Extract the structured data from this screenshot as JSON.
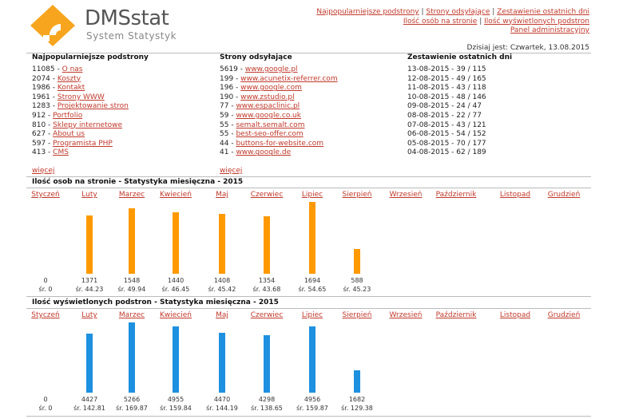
{
  "brand": {
    "name": "DMSstat",
    "subtitle": "System Statystyk"
  },
  "topnav": {
    "items": [
      "Najpopularniejsze podstrony",
      "Strony odsyłające",
      "Zestawienie ostatnich dni",
      "Ilość osób na stronie",
      "Ilość wyświetlonych podstron",
      "Panel administracyjny"
    ]
  },
  "date_text": "Dzisiaj jest: Czwartek, 13.08.2015",
  "popular": {
    "title": "Najpopularniejsze podstrony",
    "rows": [
      {
        "count": "11085",
        "label": "O nas"
      },
      {
        "count": "2074",
        "label": "Koszty"
      },
      {
        "count": "1986",
        "label": "Kontakt"
      },
      {
        "count": "1961",
        "label": "Strony WWW"
      },
      {
        "count": "1283",
        "label": "Projektowanie stron"
      },
      {
        "count": "912",
        "label": "Portfolio"
      },
      {
        "count": "810",
        "label": "Sklepy internetowe"
      },
      {
        "count": "627",
        "label": "About us"
      },
      {
        "count": "597",
        "label": "Programista PHP"
      },
      {
        "count": "413",
        "label": "CMS"
      }
    ],
    "more": "więcej"
  },
  "referrers": {
    "title": "Strony odsyłające",
    "rows": [
      {
        "count": "5619",
        "label": "www.google.pl"
      },
      {
        "count": "199",
        "label": "www.acunetix-referrer.com"
      },
      {
        "count": "196",
        "label": "www.google.com"
      },
      {
        "count": "190",
        "label": "www.zstudio.pl"
      },
      {
        "count": "77",
        "label": "www.espaclinic.pl"
      },
      {
        "count": "59",
        "label": "www.google.co.uk"
      },
      {
        "count": "55",
        "label": "semalt.semalt.com"
      },
      {
        "count": "55",
        "label": "best-seo-offer.com"
      },
      {
        "count": "44",
        "label": "buttons-for-website.com"
      },
      {
        "count": "41",
        "label": "www.google.de"
      }
    ],
    "more": "więcej"
  },
  "recent": {
    "title": "Zestawienie ostatnich dni",
    "rows": [
      "13-08-2015 - 39 / 115",
      "12-08-2015 - 49 / 165",
      "11-08-2015 - 43 / 118",
      "10-08-2015 - 48 / 146",
      "09-08-2015 - 24 / 47",
      "08-08-2015 - 22 / 77",
      "07-08-2015 - 43 / 121",
      "06-08-2015 - 54 / 152",
      "05-08-2015 - 70 / 177",
      "04-08-2015 - 62 / 189"
    ]
  },
  "months": [
    "Styczeń",
    "Luty",
    "Marzec",
    "Kwiecień",
    "Maj",
    "Czerwiec",
    "Lipiec",
    "Sierpień",
    "Wrzesień",
    "Październik",
    "Listopad",
    "Grudzień"
  ],
  "visitors": {
    "title": "Ilość osob na stronie - Statystyka miesięczna - 2015",
    "color": "#ff9900",
    "values": [
      0,
      1371,
      1548,
      1440,
      1408,
      1354,
      1694,
      588
    ],
    "labels": [
      "0",
      "1371",
      "1548",
      "1440",
      "1408",
      "1354",
      "1694",
      "588"
    ],
    "avgs": [
      "śr. 0",
      "śr. 44.23",
      "śr. 49.94",
      "śr. 46.45",
      "śr. 45.42",
      "śr. 43.68",
      "śr. 54.65",
      "śr. 45.23"
    ]
  },
  "pageviews": {
    "title": "Ilość wyświetlonych podstron - Statystyka miesięczna - 2015",
    "color": "#1e90e0",
    "values": [
      0,
      4427,
      5266,
      4955,
      4470,
      4298,
      4956,
      1682
    ],
    "labels": [
      "0",
      "4427",
      "5266",
      "4955",
      "4470",
      "4298",
      "4956",
      "1682"
    ],
    "avgs": [
      "śr. 0",
      "śr. 142.81",
      "śr. 169.87",
      "śr. 159.84",
      "śr. 144.19",
      "śr. 138.65",
      "śr. 159.87",
      "śr. 129.38"
    ]
  },
  "chart_data": [
    {
      "type": "bar",
      "title": "Ilość osob na stronie - Statystyka miesięczna - 2015",
      "categories": [
        "Styczeń",
        "Luty",
        "Marzec",
        "Kwiecień",
        "Maj",
        "Czerwiec",
        "Lipiec",
        "Sierpień",
        "Wrzesień",
        "Październik",
        "Listopad",
        "Grudzień"
      ],
      "values": [
        0,
        1371,
        1548,
        1440,
        1408,
        1354,
        1694,
        588,
        null,
        null,
        null,
        null
      ],
      "grid": false
    },
    {
      "type": "bar",
      "title": "Ilość wyświetlonych podstron - Statystyka miesięczna - 2015",
      "categories": [
        "Styczeń",
        "Luty",
        "Marzec",
        "Kwiecień",
        "Maj",
        "Czerwiec",
        "Lipiec",
        "Sierpień",
        "Wrzesień",
        "Październik",
        "Listopad",
        "Grudzień"
      ],
      "values": [
        0,
        4427,
        5266,
        4955,
        4470,
        4298,
        4956,
        1682,
        null,
        null,
        null,
        null
      ],
      "grid": false
    }
  ]
}
